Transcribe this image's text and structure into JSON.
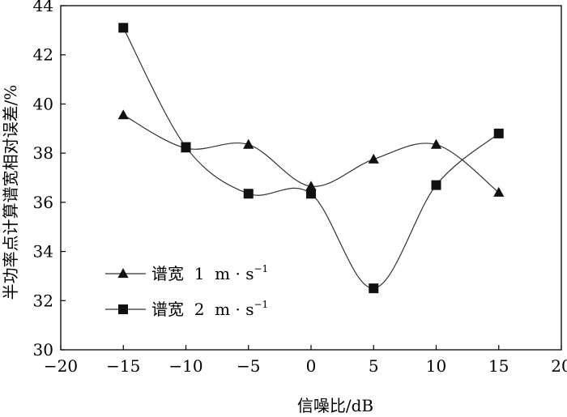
{
  "chart_data": {
    "type": "line",
    "xlabel": "信噪比/dB",
    "ylabel": "半功率点计算谱宽相对误差/%",
    "xlim": [
      -20,
      20
    ],
    "ylim": [
      30,
      44
    ],
    "x_ticks": [
      -20,
      -15,
      -10,
      -5,
      0,
      5,
      10,
      15,
      20
    ],
    "y_ticks": [
      30,
      32,
      34,
      36,
      38,
      40,
      42,
      44
    ],
    "x_tick_labels": [
      "−20",
      "−15",
      "−10",
      "−5",
      "0",
      "5",
      "10",
      "15",
      "20"
    ],
    "y_tick_labels": [
      "30",
      "32",
      "34",
      "36",
      "38",
      "40",
      "42",
      "44"
    ],
    "grid": false,
    "legend_position": "lower-left",
    "x": [
      -15,
      -10,
      -5,
      0,
      5,
      10,
      15
    ],
    "series": [
      {
        "name": "谱宽  1  m · s",
        "name_superscript": "−1",
        "marker": "triangle",
        "values": [
          39.55,
          38.2,
          38.35,
          36.65,
          37.75,
          38.35,
          36.4
        ]
      },
      {
        "name": "谱宽  2  m · s",
        "name_superscript": "−1",
        "marker": "square",
        "values": [
          43.1,
          38.25,
          36.35,
          36.35,
          32.5,
          36.7,
          38.8
        ]
      }
    ],
    "line_color": "#333333",
    "marker_color": "#111111"
  }
}
